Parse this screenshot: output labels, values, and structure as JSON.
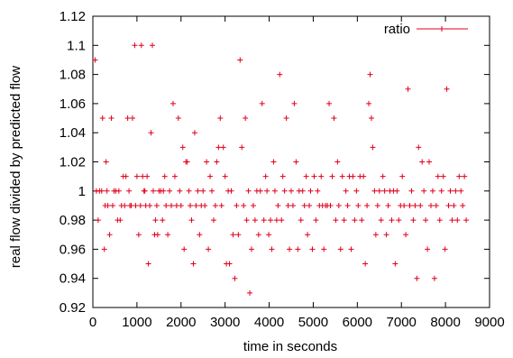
{
  "chart_data": {
    "type": "scatter",
    "xlabel": "time in seconds",
    "ylabel": "real flow divided by predicted flow",
    "xlim": [
      0,
      9000
    ],
    "ylim": [
      0.92,
      1.12
    ],
    "xticks": [
      0,
      1000,
      2000,
      3000,
      4000,
      5000,
      6000,
      7000,
      8000,
      9000
    ],
    "yticks": [
      0.92,
      0.94,
      0.96,
      0.98,
      1,
      1.02,
      1.04,
      1.06,
      1.08,
      1.1,
      1.12
    ],
    "xtick_labels": [
      "0",
      "1000",
      "2000",
      "3000",
      "4000",
      "5000",
      "6000",
      "7000",
      "8000",
      "9000"
    ],
    "ytick_labels": [
      "0.92",
      "0.94",
      "0.96",
      "0.98",
      "1",
      "1.02",
      "1.04",
      "1.06",
      "1.08",
      "1.1",
      "1.12"
    ],
    "grid": false,
    "legend_position": "top-right",
    "marker": "plus",
    "series": [
      {
        "name": "ratio",
        "color": "#e0001a",
        "points": [
          [
            50,
            1.09
          ],
          [
            80,
            1.0
          ],
          [
            120,
            0.98
          ],
          [
            150,
            1.0
          ],
          [
            200,
            1.0
          ],
          [
            220,
            1.05
          ],
          [
            260,
            0.96
          ],
          [
            280,
            0.99
          ],
          [
            300,
            1.02
          ],
          [
            320,
            1.0
          ],
          [
            340,
            0.99
          ],
          [
            380,
            0.97
          ],
          [
            420,
            1.05
          ],
          [
            450,
            0.99
          ],
          [
            480,
            1.0
          ],
          [
            520,
            1.0
          ],
          [
            560,
            0.98
          ],
          [
            590,
            1.0
          ],
          [
            620,
            0.98
          ],
          [
            650,
            0.99
          ],
          [
            690,
            1.01
          ],
          [
            720,
            0.99
          ],
          [
            750,
            1.01
          ],
          [
            790,
            1.05
          ],
          [
            820,
            1.0
          ],
          [
            840,
            0.99
          ],
          [
            870,
            0.99
          ],
          [
            900,
            1.05
          ],
          [
            950,
            1.1
          ],
          [
            970,
            0.99
          ],
          [
            1000,
            1.01
          ],
          [
            1040,
            0.97
          ],
          [
            1080,
            0.99
          ],
          [
            1100,
            1.1
          ],
          [
            1130,
            1.01
          ],
          [
            1160,
            1.0
          ],
          [
            1180,
            1.0
          ],
          [
            1200,
            0.99
          ],
          [
            1230,
            1.01
          ],
          [
            1260,
            0.95
          ],
          [
            1290,
            0.99
          ],
          [
            1320,
            1.04
          ],
          [
            1350,
            1.1
          ],
          [
            1370,
            1.0
          ],
          [
            1400,
            0.97
          ],
          [
            1420,
            0.98
          ],
          [
            1450,
            0.99
          ],
          [
            1470,
            0.97
          ],
          [
            1500,
            1.0
          ],
          [
            1540,
            1.0
          ],
          [
            1580,
            0.98
          ],
          [
            1600,
            1.0
          ],
          [
            1630,
            1.01
          ],
          [
            1660,
            0.99
          ],
          [
            1700,
            0.97
          ],
          [
            1740,
            1.0
          ],
          [
            1780,
            0.99
          ],
          [
            1820,
            1.06
          ],
          [
            1860,
            1.01
          ],
          [
            1900,
            0.99
          ],
          [
            1940,
            1.05
          ],
          [
            1970,
            1.0
          ],
          [
            2000,
            0.99
          ],
          [
            2040,
            1.03
          ],
          [
            2070,
            0.96
          ],
          [
            2110,
            1.02
          ],
          [
            2140,
            1.02
          ],
          [
            2180,
            1.0
          ],
          [
            2210,
            0.99
          ],
          [
            2240,
            0.98
          ],
          [
            2280,
            0.95
          ],
          [
            2310,
            1.04
          ],
          [
            2340,
            0.99
          ],
          [
            2380,
            1.0
          ],
          [
            2420,
            0.97
          ],
          [
            2460,
            0.99
          ],
          [
            2500,
            1.0
          ],
          [
            2540,
            0.99
          ],
          [
            2580,
            1.02
          ],
          [
            2620,
            0.96
          ],
          [
            2660,
            1.01
          ],
          [
            2700,
            1.0
          ],
          [
            2740,
            0.98
          ],
          [
            2780,
            0.99
          ],
          [
            2810,
            1.02
          ],
          [
            2850,
            1.03
          ],
          [
            2890,
            1.05
          ],
          [
            2920,
            0.99
          ],
          [
            2960,
            1.03
          ],
          [
            3000,
            1.01
          ],
          [
            3030,
            0.95
          ],
          [
            3070,
            1.0
          ],
          [
            3100,
            0.95
          ],
          [
            3140,
            1.0
          ],
          [
            3180,
            0.97
          ],
          [
            3220,
            0.94
          ],
          [
            3260,
            0.99
          ],
          [
            3300,
            0.97
          ],
          [
            3340,
            1.09
          ],
          [
            3380,
            1.03
          ],
          [
            3420,
            0.99
          ],
          [
            3460,
            1.05
          ],
          [
            3490,
            0.98
          ],
          [
            3530,
            1.0
          ],
          [
            3560,
            0.93
          ],
          [
            3600,
            0.96
          ],
          [
            3640,
            0.99
          ],
          [
            3680,
            0.98
          ],
          [
            3720,
            1.0
          ],
          [
            3760,
            0.97
          ],
          [
            3800,
            1.0
          ],
          [
            3840,
            1.06
          ],
          [
            3880,
            0.98
          ],
          [
            3920,
            1.01
          ],
          [
            3950,
            1.0
          ],
          [
            3990,
            0.97
          ],
          [
            4030,
            0.98
          ],
          [
            4060,
            0.96
          ],
          [
            4100,
            1.02
          ],
          [
            4130,
            1.0
          ],
          [
            4170,
            0.98
          ],
          [
            4200,
            0.99
          ],
          [
            4240,
            1.08
          ],
          [
            4280,
            0.98
          ],
          [
            4310,
            1.01
          ],
          [
            4350,
            1.0
          ],
          [
            4390,
            1.05
          ],
          [
            4430,
            0.99
          ],
          [
            4460,
            0.96
          ],
          [
            4500,
            1.0
          ],
          [
            4540,
            0.99
          ],
          [
            4570,
            1.06
          ],
          [
            4610,
            1.02
          ],
          [
            4650,
            0.96
          ],
          [
            4680,
            1.0
          ],
          [
            4720,
            0.98
          ],
          [
            4760,
            1.0
          ],
          [
            4800,
            0.99
          ],
          [
            4840,
            1.01
          ],
          [
            4870,
            0.97
          ],
          [
            4910,
            0.99
          ],
          [
            4940,
            1.0
          ],
          [
            4980,
            0.96
          ],
          [
            5020,
            1.01
          ],
          [
            5060,
            0.98
          ],
          [
            5100,
            1.0
          ],
          [
            5140,
            0.99
          ],
          [
            5180,
            1.01
          ],
          [
            5210,
            0.99
          ],
          [
            5240,
            0.96
          ],
          [
            5280,
            0.99
          ],
          [
            5320,
            0.99
          ],
          [
            5360,
            1.06
          ],
          [
            5390,
            0.99
          ],
          [
            5430,
            1.01
          ],
          [
            5470,
            1.05
          ],
          [
            5510,
            0.98
          ],
          [
            5550,
            1.02
          ],
          [
            5580,
            0.99
          ],
          [
            5620,
            0.96
          ],
          [
            5660,
            1.01
          ],
          [
            5700,
            0.98
          ],
          [
            5740,
            1.0
          ],
          [
            5780,
            0.99
          ],
          [
            5820,
            1.01
          ],
          [
            5860,
            0.96
          ],
          [
            5900,
            1.01
          ],
          [
            5940,
            0.98
          ],
          [
            5980,
            1.0
          ],
          [
            6020,
            0.99
          ],
          [
            6060,
            1.01
          ],
          [
            6100,
            0.98
          ],
          [
            6140,
            1.01
          ],
          [
            6180,
            0.95
          ],
          [
            6220,
            0.99
          ],
          [
            6260,
            1.06
          ],
          [
            6290,
            1.08
          ],
          [
            6320,
            1.05
          ],
          [
            6350,
            1.03
          ],
          [
            6390,
            1.0
          ],
          [
            6420,
            0.97
          ],
          [
            6460,
            0.99
          ],
          [
            6500,
            1.0
          ],
          [
            6540,
            0.98
          ],
          [
            6580,
            1.01
          ],
          [
            6620,
            1.0
          ],
          [
            6660,
            0.97
          ],
          [
            6700,
            0.99
          ],
          [
            6740,
            1.0
          ],
          [
            6780,
            0.98
          ],
          [
            6820,
            1.0
          ],
          [
            6860,
            0.95
          ],
          [
            6900,
            1.0
          ],
          [
            6940,
            0.98
          ],
          [
            6980,
            0.99
          ],
          [
            7020,
            1.01
          ],
          [
            7060,
            0.99
          ],
          [
            7100,
            0.97
          ],
          [
            7150,
            1.07
          ],
          [
            7190,
            0.99
          ],
          [
            7230,
            1.0
          ],
          [
            7270,
            0.98
          ],
          [
            7310,
            0.99
          ],
          [
            7350,
            0.94
          ],
          [
            7390,
            1.03
          ],
          [
            7430,
            0.99
          ],
          [
            7470,
            1.02
          ],
          [
            7510,
            1.0
          ],
          [
            7550,
            0.98
          ],
          [
            7590,
            0.96
          ],
          [
            7630,
            1.02
          ],
          [
            7670,
            0.99
          ],
          [
            7710,
            1.0
          ],
          [
            7750,
            0.94
          ],
          [
            7790,
            0.99
          ],
          [
            7830,
            1.01
          ],
          [
            7870,
            0.98
          ],
          [
            7910,
            1.0
          ],
          [
            7950,
            1.01
          ],
          [
            7990,
            0.96
          ],
          [
            8030,
            1.07
          ],
          [
            8070,
            0.99
          ],
          [
            8110,
            1.0
          ],
          [
            8150,
            0.98
          ],
          [
            8190,
            0.99
          ],
          [
            8230,
            1.0
          ],
          [
            8270,
            0.98
          ],
          [
            8310,
            1.01
          ],
          [
            8350,
            1.0
          ],
          [
            8390,
            0.99
          ],
          [
            8430,
            1.01
          ],
          [
            8470,
            0.98
          ]
        ]
      }
    ]
  }
}
